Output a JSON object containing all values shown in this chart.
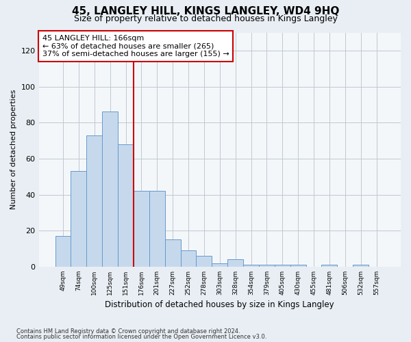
{
  "title": "45, LANGLEY HILL, KINGS LANGLEY, WD4 9HQ",
  "subtitle": "Size of property relative to detached houses in Kings Langley",
  "xlabel": "Distribution of detached houses by size in Kings Langley",
  "ylabel": "Number of detached properties",
  "footnote1": "Contains HM Land Registry data © Crown copyright and database right 2024.",
  "footnote2": "Contains public sector information licensed under the Open Government Licence v3.0.",
  "annotation_line1": "45 LANGLEY HILL: 166sqm",
  "annotation_line2": "← 63% of detached houses are smaller (265)",
  "annotation_line3": "37% of semi-detached houses are larger (155) →",
  "bar_labels": [
    "49sqm",
    "74sqm",
    "100sqm",
    "125sqm",
    "151sqm",
    "176sqm",
    "201sqm",
    "227sqm",
    "252sqm",
    "278sqm",
    "303sqm",
    "328sqm",
    "354sqm",
    "379sqm",
    "405sqm",
    "430sqm",
    "455sqm",
    "481sqm",
    "506sqm",
    "532sqm",
    "557sqm"
  ],
  "bar_values": [
    17,
    53,
    73,
    86,
    68,
    42,
    42,
    15,
    9,
    6,
    2,
    4,
    1,
    1,
    1,
    1,
    0,
    1,
    0,
    1,
    0
  ],
  "bar_color": "#c6d9ec",
  "bar_edge_color": "#6699cc",
  "vline_color": "#cc0000",
  "vline_x_idx": 5,
  "annotation_box_color": "#cc0000",
  "ylim": [
    0,
    130
  ],
  "yticks": [
    0,
    20,
    40,
    60,
    80,
    100,
    120
  ],
  "background_color": "#e8eef4",
  "plot_background": "#f4f7fa",
  "grid_color": "#c0c8d0",
  "title_fontsize": 11,
  "subtitle_fontsize": 9
}
